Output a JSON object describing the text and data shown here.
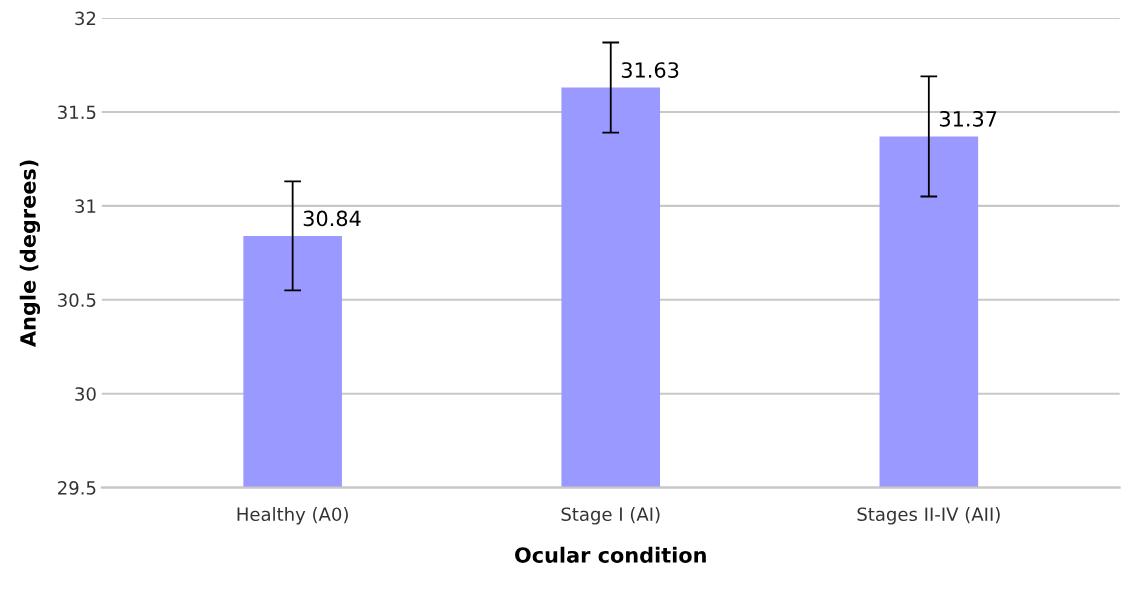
{
  "chart_data": {
    "type": "bar",
    "xlabel": "Ocular condition",
    "ylabel": "Angle (degrees)",
    "categories": [
      "Healthy (A0)",
      "Stage I (AI)",
      "Stages II-IV (AII)"
    ],
    "values": [
      30.84,
      31.63,
      31.37
    ],
    "color": "#9999ff",
    "errors": [
      0.29,
      0.24,
      0.32
    ],
    "ylim": [
      29.5,
      32
    ],
    "yticks": [
      29.5,
      30,
      30.5,
      31,
      31.5,
      32
    ],
    "grid": "y",
    "data_labels": true
  }
}
